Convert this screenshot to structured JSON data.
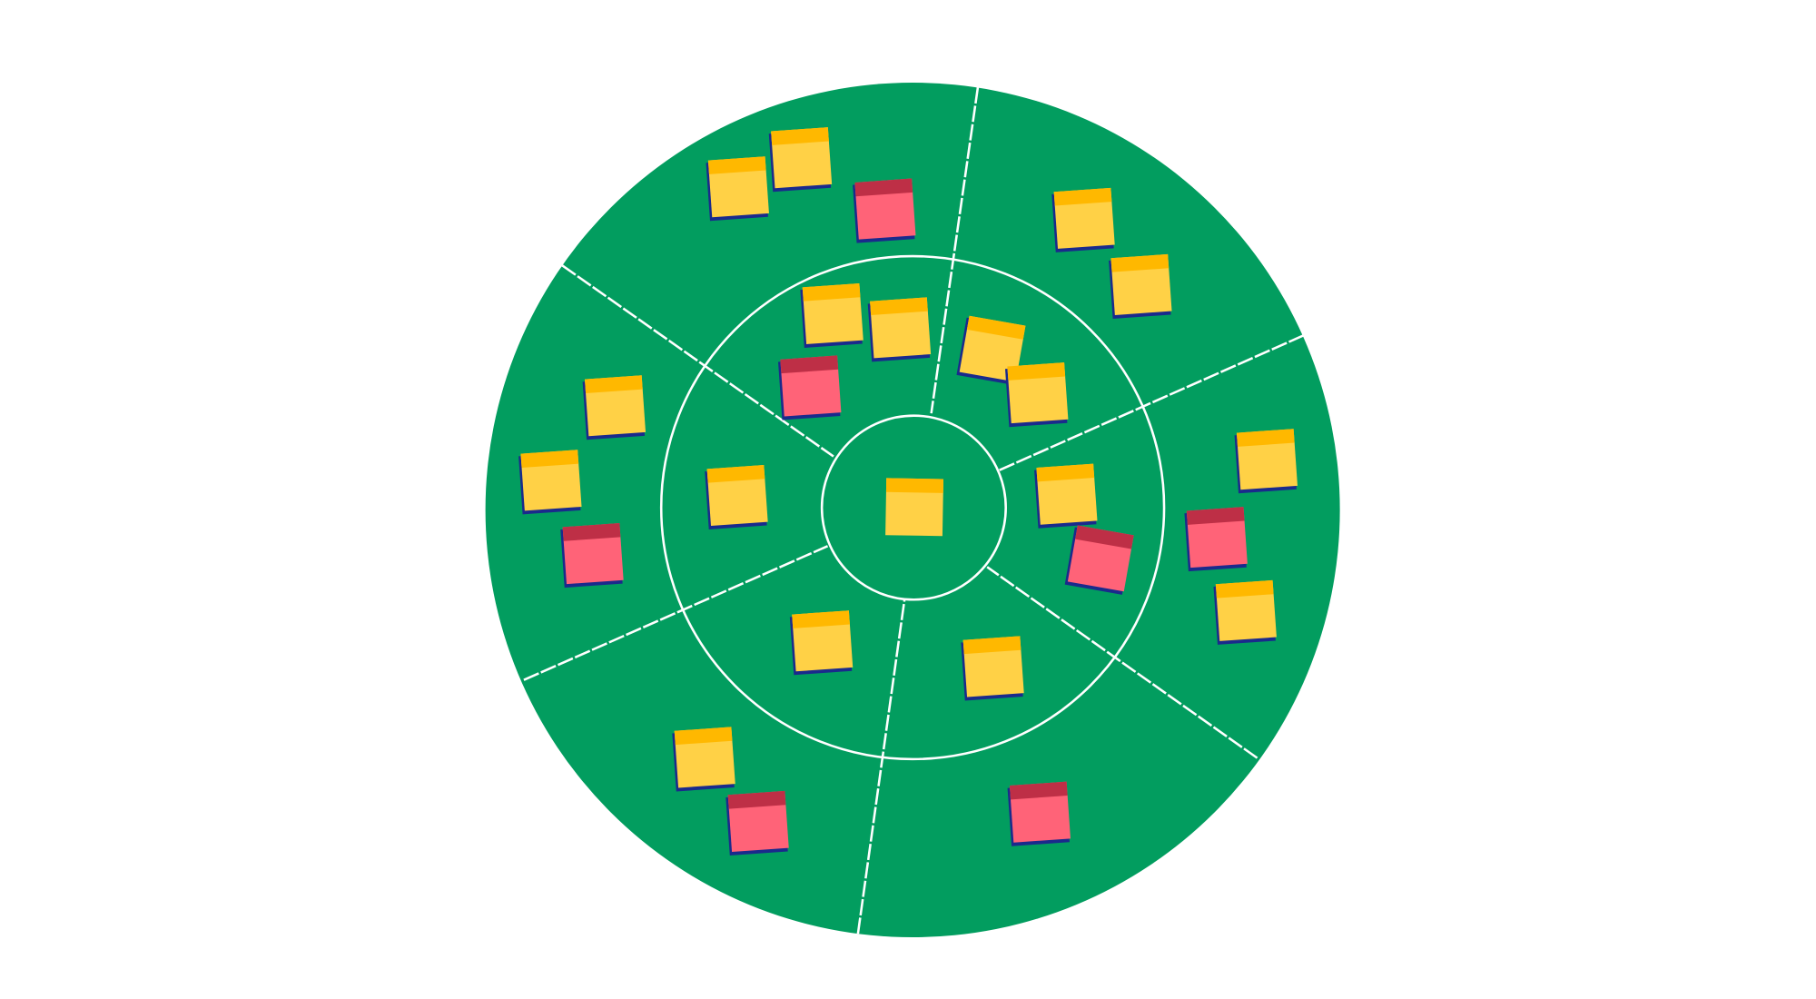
{
  "board": {
    "background": "#ffffff",
    "target_color": "#029d5f",
    "line_color": "#ffffff",
    "rings": 3,
    "sectors": 6
  },
  "sticky_colors": {
    "yellow": {
      "body": "#ffd146",
      "header": "#ffb800"
    },
    "pink": {
      "body": "#ff6378",
      "header": "#be2f46"
    },
    "shadow": "#1a2a8c"
  },
  "notes": {
    "yellow_count": 18,
    "pink_count": 7
  }
}
